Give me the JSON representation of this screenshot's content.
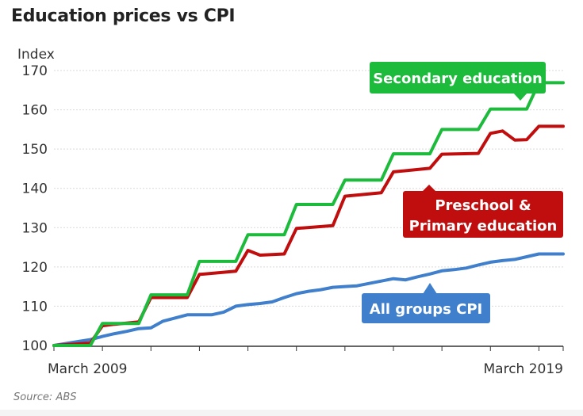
{
  "chart_data": {
    "type": "line",
    "title": "Education prices vs CPI",
    "ylabel": "Index",
    "source": "Source: ABS",
    "ylim": [
      100,
      170
    ],
    "yticks": [
      100,
      110,
      120,
      130,
      140,
      150,
      160,
      170
    ],
    "x_tick_labels": [
      "March 2009",
      "March 2019"
    ],
    "grid": true,
    "x_start": 2009,
    "x_end": 2019.5,
    "series": [
      {
        "name": "All groups CPI",
        "color": "#3f7fcc",
        "x": [
          2009.0,
          2009.25,
          2009.5,
          2009.75,
          2010.0,
          2010.25,
          2010.5,
          2010.75,
          2011.0,
          2011.25,
          2011.5,
          2011.75,
          2012.0,
          2012.25,
          2012.5,
          2012.75,
          2013.0,
          2013.25,
          2013.5,
          2013.75,
          2014.0,
          2014.25,
          2014.5,
          2014.75,
          2015.0,
          2015.25,
          2015.5,
          2015.75,
          2016.0,
          2016.25,
          2016.5,
          2016.75,
          2017.0,
          2017.25,
          2017.5,
          2017.75,
          2018.0,
          2018.25,
          2018.5,
          2018.75,
          2019.0,
          2019.25,
          2019.5
        ],
        "values": [
          100.0,
          100.5,
          101.0,
          101.5,
          102.3,
          103.0,
          103.6,
          104.3,
          104.5,
          106.2,
          107.0,
          107.8,
          107.8,
          107.8,
          108.5,
          110.0,
          110.4,
          110.7,
          111.1,
          112.2,
          113.2,
          113.8,
          114.2,
          114.8,
          115.0,
          115.2,
          115.8,
          116.4,
          117.0,
          116.7,
          117.5,
          118.2,
          119.0,
          119.3,
          119.7,
          120.5,
          121.2,
          121.6,
          121.9,
          122.6,
          123.3,
          123.3,
          123.3
        ]
      },
      {
        "name": "Preschool & Primary education",
        "color": "#c00d0d",
        "x": [
          2009.0,
          2009.75,
          2010.0,
          2010.25,
          2010.75,
          2011.0,
          2011.75,
          2012.0,
          2012.75,
          2013.0,
          2013.25,
          2013.75,
          2014.0,
          2014.75,
          2015.0,
          2015.75,
          2016.0,
          2016.75,
          2017.0,
          2017.75,
          2018.0,
          2018.25,
          2018.5,
          2018.75,
          2019.0,
          2019.5
        ],
        "values": [
          100.0,
          100.6,
          105.0,
          105.4,
          106.0,
          112.2,
          112.2,
          118.1,
          118.9,
          124.2,
          123.0,
          123.3,
          129.8,
          130.5,
          138.0,
          138.9,
          144.2,
          145.1,
          148.7,
          148.9,
          154.0,
          154.6,
          152.3,
          152.4,
          155.8,
          155.8
        ]
      },
      {
        "name": "Secondary education",
        "color": "#1dbb3c",
        "x": [
          2009.0,
          2009.75,
          2010.0,
          2010.75,
          2011.0,
          2011.75,
          2012.0,
          2012.75,
          2013.0,
          2013.75,
          2014.0,
          2014.75,
          2015.0,
          2015.75,
          2016.0,
          2016.75,
          2017.0,
          2017.75,
          2018.0,
          2018.75,
          2019.0,
          2019.5
        ],
        "values": [
          100.0,
          100.0,
          105.6,
          105.6,
          112.9,
          112.9,
          121.4,
          121.4,
          128.2,
          128.2,
          135.9,
          135.9,
          142.1,
          142.1,
          148.8,
          148.8,
          155.0,
          155.0,
          160.2,
          160.2,
          166.9,
          166.9
        ]
      }
    ],
    "annotations": [
      {
        "series": "Secondary education",
        "lines": [
          "Secondary education"
        ]
      },
      {
        "series": "Preschool & Primary education",
        "lines": [
          "Preschool &",
          "Primary education"
        ]
      },
      {
        "series": "All groups CPI",
        "lines": [
          "All groups CPI"
        ]
      }
    ]
  }
}
